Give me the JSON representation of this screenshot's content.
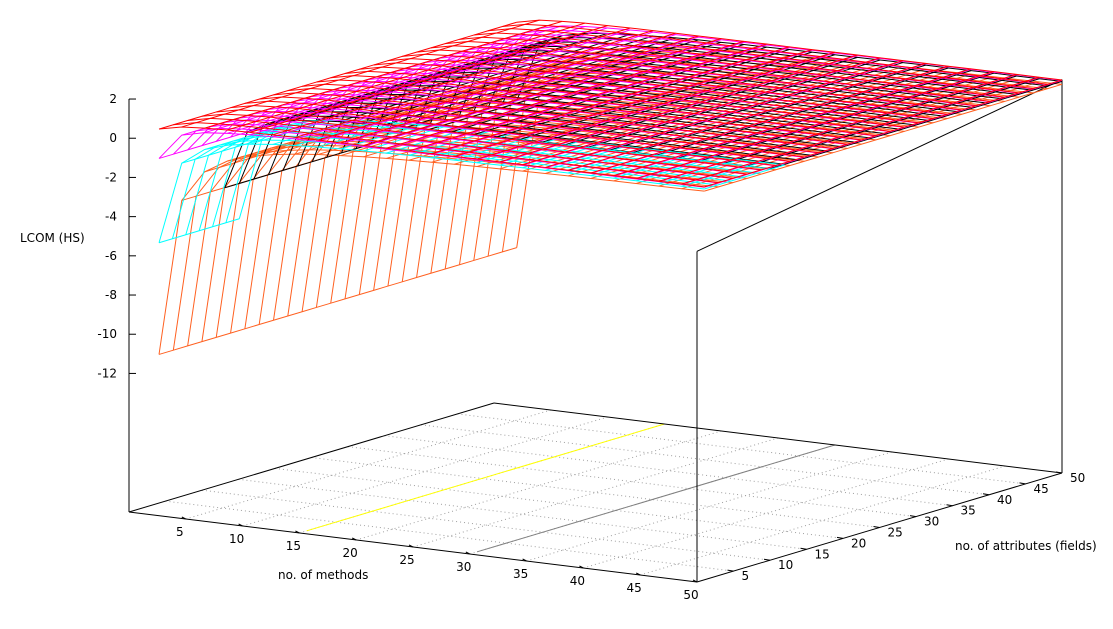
{
  "chart_data": {
    "type": "surface3d",
    "title": "",
    "xlabel": "no. of methods",
    "ylabel": "no. of attributes (fields)",
    "zlabel": "LCOM (HS)",
    "xlim": [
      0,
      50
    ],
    "ylim": [
      0,
      50
    ],
    "zlim": [
      -12,
      2
    ],
    "xticks": [
      "5",
      "10",
      "15",
      "20",
      "25",
      "30",
      "35",
      "40",
      "45",
      "50"
    ],
    "yticks": [
      "5",
      "10",
      "15",
      "20",
      "25",
      "30",
      "35",
      "40",
      "45",
      "50"
    ],
    "zticks": [
      "2",
      "0",
      "-2",
      "-4",
      "-6",
      "-8",
      "-10",
      "-12"
    ],
    "grid": "base-dotted",
    "methods_grid": [
      2,
      4,
      6,
      8,
      10,
      12,
      14,
      16,
      18,
      20,
      22,
      24,
      26,
      28,
      30,
      32,
      34,
      36,
      38,
      40,
      42,
      44,
      46,
      48,
      50
    ],
    "surfaces": [
      {
        "color": "#ff6020",
        "attributes_range": [
          1,
          50
        ],
        "z_by_methods": [
          -11,
          -3,
          -1.4,
          -0.71,
          -0.33,
          -0.09,
          0.08,
          0.2,
          0.29,
          0.37,
          0.43,
          0.48,
          0.52,
          0.56,
          0.59,
          0.61,
          0.64,
          0.66,
          0.68,
          0.69,
          0.71,
          0.72,
          0.73,
          0.74,
          0.76
        ]
      },
      {
        "color": "#000000",
        "attributes_range": [
          10,
          50
        ],
        "z_by_methods": [
          -3.5,
          -0.5,
          0.1,
          0.36,
          0.5,
          0.59,
          0.65,
          0.7,
          0.74,
          0.76,
          0.79,
          0.8,
          0.82,
          0.83,
          0.84,
          0.85,
          0.86,
          0.87,
          0.88,
          0.88,
          0.89,
          0.9,
          0.9,
          0.9,
          0.91
        ]
      },
      {
        "color": "#00ffff",
        "attributes_range": [
          1,
          12
        ],
        "z_by_methods": [
          -5.3,
          -1.1,
          -0.26,
          0.1,
          0.3,
          0.43,
          0.52,
          0.58,
          0.63,
          0.67,
          0.7,
          0.73,
          0.75,
          0.77,
          0.78,
          0.8,
          0.81,
          0.82,
          0.83,
          0.84,
          0.85,
          0.86,
          0.86,
          0.87,
          0.87
        ]
      },
      {
        "color": "#ff00ff",
        "attributes_range": [
          1,
          50
        ],
        "z_by_methods": [
          -1,
          0.33,
          0.6,
          0.71,
          0.78,
          0.82,
          0.85,
          0.87,
          0.88,
          0.89,
          0.9,
          0.91,
          0.92,
          0.93,
          0.93,
          0.94,
          0.94,
          0.94,
          0.95,
          0.95,
          0.95,
          0.95,
          0.96,
          0.96,
          0.96
        ]
      },
      {
        "color": "#ff0000",
        "attributes_range": [
          1,
          50
        ],
        "z_by_methods": [
          0.5,
          0.75,
          0.83,
          0.88,
          0.9,
          0.92,
          0.93,
          0.94,
          0.94,
          0.95,
          0.95,
          0.96,
          0.96,
          0.96,
          0.97,
          0.97,
          0.97,
          0.97,
          0.97,
          0.97,
          0.98,
          0.98,
          0.98,
          0.98,
          0.98
        ]
      }
    ],
    "base_lines": [
      {
        "color": "#ffff00",
        "methods": 15
      },
      {
        "color": "#808080",
        "methods": 30
      }
    ]
  }
}
